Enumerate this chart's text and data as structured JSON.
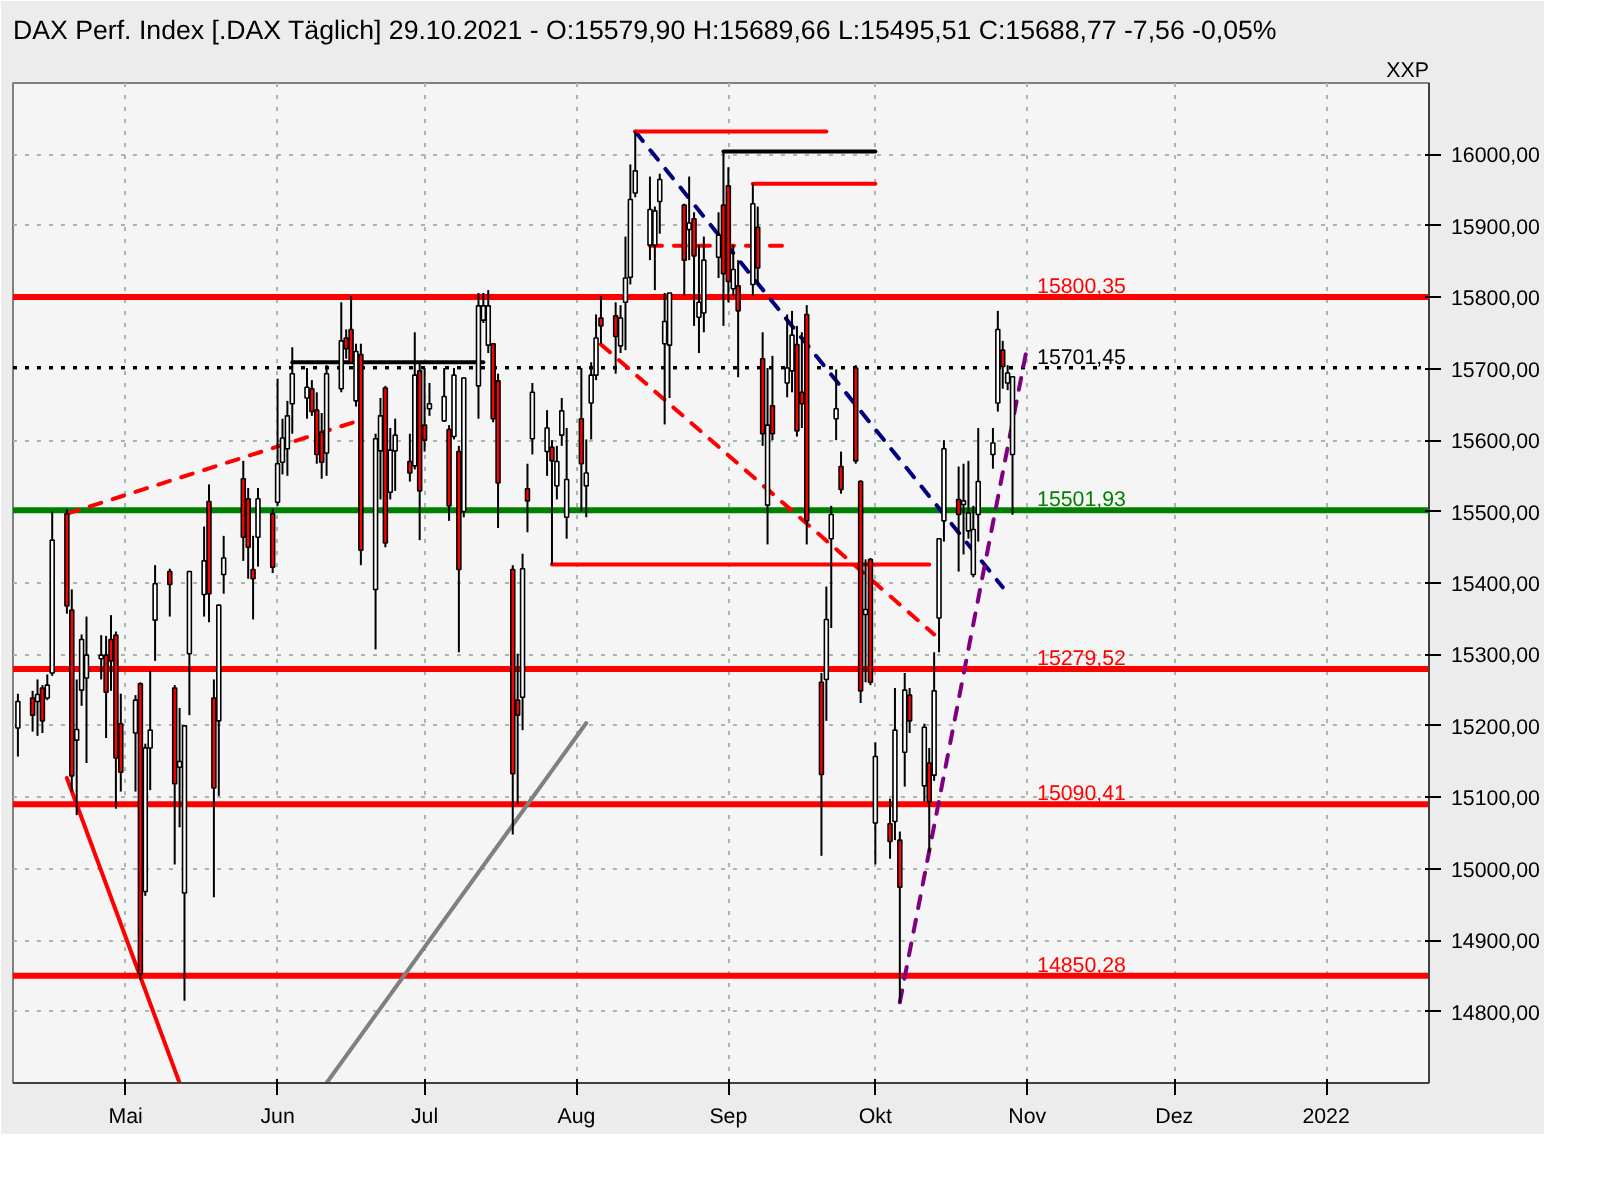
{
  "chart_data": {
    "type": "candlestick",
    "title": "DAX Perf. Index [.DAX  Täglich] 29.10.2021 - O:15579,90 H:15689,66 L:15495,51 C:15688,77 -7,56 -0,05%",
    "annotations": [
      "XXP"
    ],
    "x": [
      "2021-04-09",
      "2021-04-12",
      "2021-04-13",
      "2021-04-14",
      "2021-04-15",
      "2021-04-16",
      "2021-04-19",
      "2021-04-20",
      "2021-04-21",
      "2021-04-22",
      "2021-04-23",
      "2021-04-26",
      "2021-04-27",
      "2021-04-28",
      "2021-04-29",
      "2021-04-30",
      "2021-05-03",
      "2021-05-04",
      "2021-05-05",
      "2021-05-06",
      "2021-05-07",
      "2021-05-10",
      "2021-05-11",
      "2021-05-12",
      "2021-05-13",
      "2021-05-14",
      "2021-05-17",
      "2021-05-18",
      "2021-05-19",
      "2021-05-20",
      "2021-05-21",
      "2021-05-25",
      "2021-05-26",
      "2021-05-27",
      "2021-05-28",
      "2021-05-31",
      "2021-06-01",
      "2021-06-02",
      "2021-06-03",
      "2021-06-04",
      "2021-06-07",
      "2021-06-08",
      "2021-06-09",
      "2021-06-10",
      "2021-06-11",
      "2021-06-14",
      "2021-06-15",
      "2021-06-16",
      "2021-06-17",
      "2021-06-18",
      "2021-06-21",
      "2021-06-22",
      "2021-06-23",
      "2021-06-24",
      "2021-06-25",
      "2021-06-28",
      "2021-06-29",
      "2021-06-30",
      "2021-07-01",
      "2021-07-02",
      "2021-07-05",
      "2021-07-06",
      "2021-07-07",
      "2021-07-08",
      "2021-07-09",
      "2021-07-12",
      "2021-07-13",
      "2021-07-14",
      "2021-07-15",
      "2021-07-16",
      "2021-07-19",
      "2021-07-20",
      "2021-07-21",
      "2021-07-22",
      "2021-07-23",
      "2021-07-26",
      "2021-07-27",
      "2021-07-28",
      "2021-07-29",
      "2021-07-30",
      "2021-08-02",
      "2021-08-03",
      "2021-08-04",
      "2021-08-05",
      "2021-08-06",
      "2021-08-09",
      "2021-08-10",
      "2021-08-11",
      "2021-08-12",
      "2021-08-13",
      "2021-08-16",
      "2021-08-17",
      "2021-08-18",
      "2021-08-19",
      "2021-08-20",
      "2021-08-23",
      "2021-08-24",
      "2021-08-25",
      "2021-08-26",
      "2021-08-27",
      "2021-08-30",
      "2021-08-31",
      "2021-09-01",
      "2021-09-02",
      "2021-09-03",
      "2021-09-06",
      "2021-09-07",
      "2021-09-08",
      "2021-09-09",
      "2021-09-10",
      "2021-09-13",
      "2021-09-14",
      "2021-09-15",
      "2021-09-16",
      "2021-09-17",
      "2021-09-20",
      "2021-09-21",
      "2021-09-22",
      "2021-09-23",
      "2021-09-24",
      "2021-09-27",
      "2021-09-28",
      "2021-09-29",
      "2021-09-30",
      "2021-10-01",
      "2021-10-04",
      "2021-10-05",
      "2021-10-06",
      "2021-10-07",
      "2021-10-08",
      "2021-10-11",
      "2021-10-12",
      "2021-10-13",
      "2021-10-14",
      "2021-10-15",
      "2021-10-18",
      "2021-10-19",
      "2021-10-20",
      "2021-10-21",
      "2021-10-22",
      "2021-10-25",
      "2021-10-26",
      "2021-10-27",
      "2021-10-28",
      "2021-10-29"
    ],
    "ohlc": [
      [
        15197,
        15245,
        15157,
        15234
      ],
      [
        15239,
        15249,
        15192,
        15215
      ],
      [
        15234,
        15265,
        15186,
        15244
      ],
      [
        15253,
        15257,
        15190,
        15207
      ],
      [
        15239,
        15272,
        15236,
        15257
      ],
      [
        15274,
        15500,
        15270,
        15460
      ],
      [
        15497,
        15503,
        15357,
        15368
      ],
      [
        15362,
        15391,
        15108,
        15130
      ],
      [
        15180,
        15265,
        15075,
        15195
      ],
      [
        15250,
        15328,
        15228,
        15321
      ],
      [
        15267,
        15353,
        15148,
        15299
      ],
      [
        15294,
        15327,
        15265,
        15299
      ],
      [
        15299,
        15326,
        15183,
        15247
      ],
      [
        15321,
        15355,
        15249,
        15291
      ],
      [
        15327,
        15332,
        15084,
        15155
      ],
      [
        15203,
        15245,
        15108,
        15135
      ],
      [
        15190,
        15243,
        15108,
        15236
      ],
      [
        15259,
        15261,
        14845,
        14853
      ],
      [
        14968,
        15175,
        14962,
        15169
      ],
      [
        15169,
        15277,
        15110,
        15194
      ],
      [
        15348,
        15425,
        15291,
        15399
      ],
      [
        15416,
        15420,
        15353,
        15398
      ],
      [
        15253,
        15257,
        15006,
        15119
      ],
      [
        15142,
        15225,
        15058,
        15150
      ],
      [
        14966,
        15200,
        14815,
        15200
      ],
      [
        15301,
        15416,
        15215,
        15416
      ],
      [
        15384,
        15479,
        15353,
        15431
      ],
      [
        15514,
        15538,
        15345,
        15385
      ],
      [
        15239,
        15265,
        14960,
        15113
      ],
      [
        15207,
        15369,
        15102,
        15369
      ],
      [
        15412,
        15466,
        15385,
        15435
      ],
      [
        15546,
        15571,
        15431,
        15464
      ],
      [
        15518,
        15533,
        15406,
        15450
      ],
      [
        15419,
        15466,
        15349,
        15406
      ],
      [
        15464,
        15533,
        15423,
        15518
      ],
      [
        15497,
        15504,
        15414,
        15422
      ],
      [
        15513,
        15686,
        15508,
        15567
      ],
      [
        15569,
        15630,
        15552,
        15603
      ],
      [
        15588,
        15655,
        15550,
        15634
      ],
      [
        15651,
        15730,
        15609,
        15693
      ],
      [
        15659,
        15701,
        15630,
        15674
      ],
      [
        15672,
        15684,
        15634,
        15640
      ],
      [
        15642,
        15667,
        15567,
        15580
      ],
      [
        15611,
        15638,
        15546,
        15569
      ],
      [
        15582,
        15705,
        15550,
        15693
      ],
      [
        15672,
        15793,
        15667,
        15739
      ],
      [
        15743,
        15755,
        15714,
        15728
      ],
      [
        15755,
        15802,
        15708,
        15709
      ],
      [
        15655,
        15735,
        15647,
        15724
      ],
      [
        15720,
        15735,
        15425,
        15446
      ],
      [
        15391,
        15609,
        15307,
        15602
      ],
      [
        15585,
        15659,
        15517,
        15634
      ],
      [
        15673,
        15676,
        15450,
        15456
      ],
      [
        15527,
        15617,
        15517,
        15586
      ],
      [
        15585,
        15630,
        15529,
        15607
      ],
      [
        15570,
        15609,
        15542,
        15554
      ],
      [
        15564,
        15751,
        15559,
        15691
      ],
      [
        15697,
        15709,
        15460,
        15529
      ],
      [
        15621,
        15701,
        15584,
        15600
      ],
      [
        15644,
        15680,
        15634,
        15651
      ],
      [
        15627,
        15701,
        15626,
        15661
      ],
      [
        15615,
        15621,
        15487,
        15508
      ],
      [
        15605,
        15701,
        15601,
        15691
      ],
      [
        15584,
        15592,
        15303,
        15419
      ],
      [
        15500,
        15688,
        15492,
        15687
      ],
      [
        15676,
        15806,
        15630,
        15788
      ],
      [
        15768,
        15806,
        15764,
        15788
      ],
      [
        15733,
        15810,
        15722,
        15788
      ],
      [
        15735,
        15736,
        15625,
        15630
      ],
      [
        15683,
        15693,
        15477,
        15540
      ],
      [
        15419,
        15425,
        15048,
        15133
      ],
      [
        15236,
        15301,
        15090,
        15215
      ],
      [
        15240,
        15441,
        15194,
        15420
      ],
      [
        15532,
        15567,
        15471,
        15515
      ],
      [
        15602,
        15680,
        15580,
        15667
      ],
      [
        15584,
        15642,
        15550,
        15617
      ],
      [
        15590,
        15600,
        15426,
        15571
      ],
      [
        15536,
        15592,
        15517,
        15570
      ],
      [
        15607,
        15659,
        15592,
        15641
      ],
      [
        15492,
        15617,
        15462,
        15545
      ],
      [
        15630,
        15701,
        15500,
        15567
      ],
      [
        15536,
        15601,
        15492,
        15554
      ],
      [
        15652,
        15709,
        15601,
        15691
      ],
      [
        15691,
        15776,
        15684,
        15743
      ],
      [
        15771,
        15802,
        15735,
        15760
      ],
      [
        15774,
        15793,
        15693,
        15745
      ],
      [
        15732,
        15789,
        15722,
        15771
      ],
      [
        15793,
        15885,
        15726,
        15827
      ],
      [
        15828,
        15986,
        15818,
        15937
      ],
      [
        15946,
        16032,
        15940,
        15977
      ],
      [
        15873,
        15969,
        15852,
        15923
      ],
      [
        15873,
        15927,
        15810,
        15921
      ],
      [
        15934,
        15973,
        15889,
        15965
      ],
      [
        15735,
        15806,
        15622,
        15766
      ],
      [
        15733,
        15806,
        15659,
        15806
      ],
      [
        15929,
        15931,
        15802,
        15852
      ],
      [
        15895,
        15969,
        15852,
        15904
      ],
      [
        15910,
        15919,
        15760,
        15858
      ],
      [
        15772,
        15873,
        15722,
        15793
      ],
      [
        15778,
        15885,
        15751,
        15852
      ],
      [
        15856,
        15919,
        15827,
        15887
      ],
      [
        15929,
        16004,
        15760,
        15833
      ],
      [
        15956,
        15982,
        15793,
        15822
      ],
      [
        15812,
        15873,
        15802,
        15839
      ],
      [
        15816,
        15852,
        15688,
        15781
      ],
      [
        15818,
        15959,
        15802,
        15931
      ],
      [
        15898,
        15927,
        15818,
        15841
      ],
      [
        15714,
        15751,
        15592,
        15609
      ],
      [
        15509,
        15701,
        15454,
        15621
      ],
      [
        15648,
        15718,
        15600,
        15609
      ],
      [
        15680,
        15776,
        15660,
        15701
      ],
      [
        15697,
        15781,
        15667,
        15747
      ],
      [
        15734,
        15760,
        15605,
        15613
      ],
      [
        15667,
        15751,
        15617,
        15651
      ],
      [
        15776,
        15789,
        15454,
        15487
      ],
      [
        15261,
        15274,
        15018,
        15132
      ],
      [
        15265,
        15395,
        15207,
        15349
      ],
      [
        15462,
        15508,
        15337,
        15496
      ],
      [
        15630,
        15699,
        15600,
        15644
      ],
      [
        15563,
        15584,
        15525,
        15531
      ],
      [
        15701,
        15705,
        15567,
        15571
      ],
      [
        15542,
        15544,
        15232,
        15249
      ],
      [
        15356,
        15433,
        15261,
        15363
      ],
      [
        15433,
        15435,
        15257,
        15261
      ],
      [
        15064,
        15177,
        15006,
        15157
      ],
      [
        15063,
        15098,
        15014,
        15038
      ],
      [
        15066,
        15253,
        15040,
        15194
      ],
      [
        15040,
        15052,
        14813,
        14974
      ],
      [
        15163,
        15274,
        15115,
        15250
      ],
      [
        15243,
        15253,
        15190,
        15207
      ],
      [
        15116,
        15203,
        15094,
        15198
      ],
      [
        15148,
        15169,
        15023,
        15094
      ],
      [
        15131,
        15303,
        15123,
        15249
      ],
      [
        15351,
        15462,
        15303,
        15462
      ],
      [
        15487,
        15600,
        15458,
        15588
      ],
      [
        15517,
        15563,
        15416,
        15496
      ],
      [
        15510,
        15567,
        15440,
        15515
      ],
      [
        15473,
        15571,
        15462,
        15498
      ],
      [
        15412,
        15508,
        15408,
        15475
      ],
      [
        15496,
        15617,
        15458,
        15542
      ],
      [
        15580,
        15617,
        15560,
        15596
      ],
      [
        15652,
        15781,
        15640,
        15755
      ],
      [
        15726,
        15739,
        15672,
        15703
      ],
      [
        15680,
        15705,
        15670,
        15694
      ],
      [
        15579.9,
        15689.66,
        15495.51,
        15688.77
      ]
    ],
    "series": [
      {
        "type": "line",
        "x": [
          "2021-04-19",
          "2021-06-17"
        ],
        "values": [
          15497,
          15626
        ],
        "color": "#ff0000",
        "line_style": "dashed"
      },
      {
        "type": "line",
        "x": [
          "2021-04-19",
          "2021-05-12"
        ],
        "values": [
          15127,
          14700
        ],
        "color": "#ff0000",
        "line_style": "solid"
      },
      {
        "type": "line",
        "x": [
          "2021-06-11",
          "2021-08-03"
        ],
        "values": [
          14700,
          15204
        ],
        "color": "#808080",
        "line_style": "solid"
      },
      {
        "type": "line",
        "x": [
          "2021-06-04",
          "2021-07-13"
        ],
        "values": [
          15709,
          15709
        ],
        "color": "#000000",
        "line_style": "solid"
      },
      {
        "type": "line",
        "x": [
          "2021-07-27",
          "2021-10-12"
        ],
        "values": [
          15426,
          15426
        ],
        "color": "#ff0000",
        "line_style": "solid"
      },
      {
        "type": "line",
        "x": [
          "2021-08-06",
          "2021-10-13"
        ],
        "values": [
          15734,
          15328
        ],
        "color": "#ff0000",
        "line_style": "dashed"
      },
      {
        "type": "line",
        "x": [
          "2021-08-13",
          "2021-10-27"
        ],
        "values": [
          16032,
          15394
        ],
        "color": "#000080",
        "line_style": "dashed"
      },
      {
        "type": "line",
        "x": [
          "2021-08-13",
          "2021-09-21"
        ],
        "values": [
          16032,
          16032
        ],
        "color": "#ff0000",
        "line_style": "solid"
      },
      {
        "type": "line",
        "x": [
          "2021-08-31",
          "2021-10-01"
        ],
        "values": [
          16004,
          16004
        ],
        "color": "#000000",
        "line_style": "solid"
      },
      {
        "type": "line",
        "x": [
          "2021-09-06",
          "2021-10-01"
        ],
        "values": [
          15959,
          15959
        ],
        "color": "#ff0000",
        "line_style": "solid"
      },
      {
        "type": "line",
        "x": [
          "2021-08-16",
          "2021-09-13"
        ],
        "values": [
          15872,
          15872
        ],
        "color": "#ff0000",
        "line_style": "dashed"
      },
      {
        "type": "line",
        "x": [
          "2021-10-06",
          "2021-11-01"
        ],
        "values": [
          14813,
          15731
        ],
        "color": "#800080",
        "line_style": "dashed"
      }
    ],
    "ref_lines": [
      {
        "axis": "y",
        "value": 15800.35,
        "label": "15800,35",
        "color": "#ff0000",
        "line_style": "solid"
      },
      {
        "axis": "y",
        "value": 15701.45,
        "label": "15701,45",
        "color": "#000000",
        "line_style": "dotted"
      },
      {
        "axis": "y",
        "value": 15501.93,
        "label": "15501,93",
        "color": "#008000",
        "line_style": "solid"
      },
      {
        "axis": "y",
        "value": 15279.52,
        "label": "15279,52",
        "color": "#ff0000",
        "line_style": "solid"
      },
      {
        "axis": "y",
        "value": 15090.41,
        "label": "15090,41",
        "color": "#ff0000",
        "line_style": "solid"
      },
      {
        "axis": "y",
        "value": 14850.28,
        "label": "14850,28",
        "color": "#ff0000",
        "line_style": "solid"
      }
    ],
    "xlim": [
      "2021-04-08",
      "2022-01-22"
    ],
    "xticks": [
      {
        "value": "2021-05-01",
        "label": "Mai"
      },
      {
        "value": "2021-06-01",
        "label": "Jun"
      },
      {
        "value": "2021-07-01",
        "label": "Jul"
      },
      {
        "value": "2021-08-01",
        "label": "Aug"
      },
      {
        "value": "2021-09-01",
        "label": "Sep"
      },
      {
        "value": "2021-10-01",
        "label": "Okt"
      },
      {
        "value": "2021-11-01",
        "label": "Nov"
      },
      {
        "value": "2021-12-01",
        "label": "Dez"
      },
      {
        "value": "2022-01-01",
        "label": "2022"
      }
    ],
    "ylim": [
      14700,
      16100
    ],
    "yticks": [
      {
        "value": 14800,
        "label": "14800,00"
      },
      {
        "value": 14900,
        "label": "14900,00"
      },
      {
        "value": 15000,
        "label": "15000,00"
      },
      {
        "value": 15100,
        "label": "15100,00"
      },
      {
        "value": 15200,
        "label": "15200,00"
      },
      {
        "value": 15300,
        "label": "15300,00"
      },
      {
        "value": 15400,
        "label": "15400,00"
      },
      {
        "value": 15500,
        "label": "15500,00"
      },
      {
        "value": 15600,
        "label": "15600,00"
      },
      {
        "value": 15700,
        "label": "15700,00"
      },
      {
        "value": 15800,
        "label": "15800,00"
      },
      {
        "value": 15900,
        "label": "15900,00"
      },
      {
        "value": 16000,
        "label": "16000,00"
      }
    ],
    "grid": true
  }
}
